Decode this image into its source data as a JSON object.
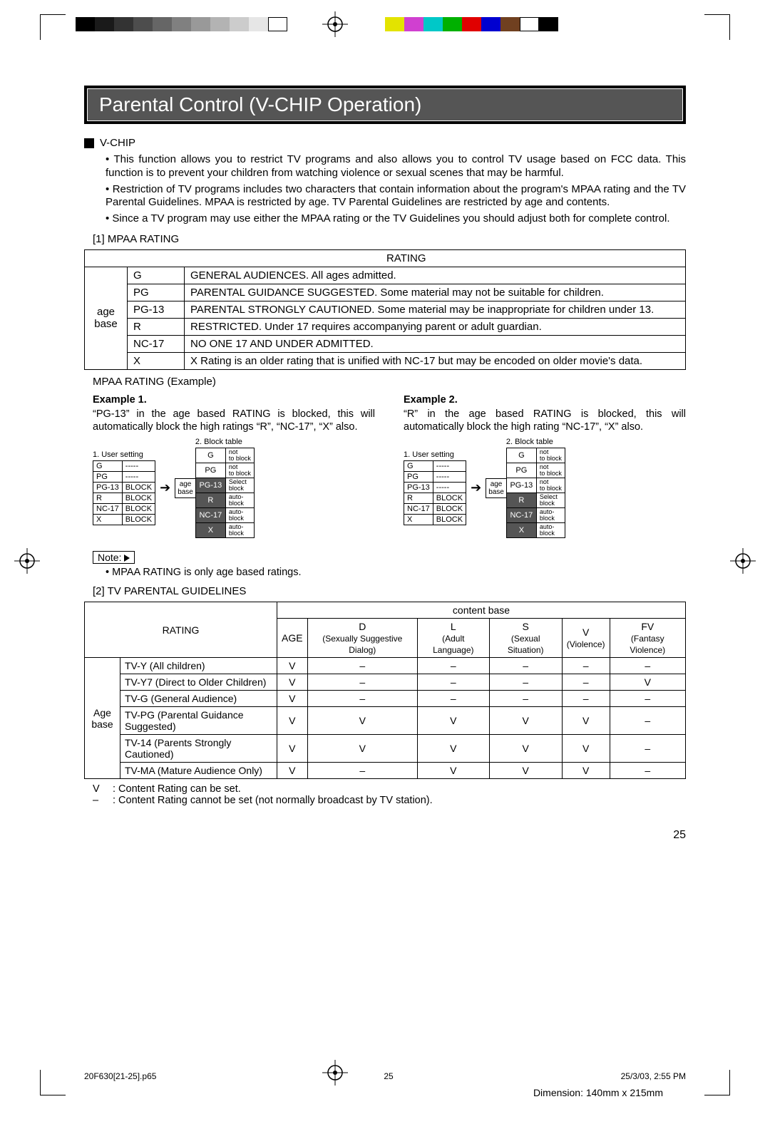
{
  "print_marks": {
    "gray_ramp": [
      "#000000",
      "#1a1a1a",
      "#333333",
      "#4d4d4d",
      "#666666",
      "#808080",
      "#999999",
      "#b3b3b3",
      "#cccccc",
      "#e6e6e6",
      "#ffffff"
    ],
    "color_bar": [
      "#e3e300",
      "#d040d0",
      "#00c8c8",
      "#00b000",
      "#e00000",
      "#0000d0",
      "#704020",
      "#ffffff",
      "#000000"
    ]
  },
  "title": "Parental Control (V-CHIP Operation)",
  "vchip_header": "V-CHIP",
  "vchip_bullets": [
    "This function allows you to restrict TV programs and also allows you to control TV usage based on FCC data. This function is to prevent your children from watching violence or sexual scenes that may be harmful.",
    "Restriction of TV programs includes two characters that contain information about the program's MPAA rating and the TV Parental Guidelines. MPAA is restricted by age. TV Parental Guidelines are restricted by age and contents.",
    "Since a TV program may use either the MPAA rating or the TV Guidelines you should adjust both for complete control."
  ],
  "mpaa_section_label": "[1] MPAA RATING",
  "mpaa_table": {
    "header": "RATING",
    "rowhead": "age base",
    "rows": [
      {
        "code": "G",
        "desc": "GENERAL AUDIENCES. All ages admitted."
      },
      {
        "code": "PG",
        "desc": "PARENTAL GUIDANCE SUGGESTED. Some material may not be suitable for children."
      },
      {
        "code": "PG-13",
        "desc": "PARENTAL STRONGLY CAUTIONED.  Some material may be inappropriate for children under 13."
      },
      {
        "code": "R",
        "desc": "RESTRICTED. Under 17 requires accompanying parent or adult guardian."
      },
      {
        "code": "NC-17",
        "desc": "NO ONE 17 AND UNDER ADMITTED."
      },
      {
        "code": "X",
        "desc": "X Rating is an older rating that is unified with NC-17 but may be encoded on older movie's data."
      }
    ]
  },
  "mpaa_example_label": "MPAA RATING (Example)",
  "examples": [
    {
      "title": "Example 1.",
      "text": "“PG-13” in the age based RATING is blocked, this will automatically block the high ratings “R”, “NC-17”, “X” also.",
      "user_header": "1. User setting",
      "block_header": "2. Block table",
      "user_rows": [
        [
          "G",
          "-----"
        ],
        [
          "PG",
          "-----"
        ],
        [
          "PG-13",
          "BLOCK"
        ],
        [
          "R",
          "BLOCK"
        ],
        [
          "NC-17",
          "BLOCK"
        ],
        [
          "X",
          "BLOCK"
        ]
      ],
      "age_label": "age base",
      "block_rows": [
        {
          "code": "G",
          "state": "not to block",
          "dark": false
        },
        {
          "code": "PG",
          "state": "not to block",
          "dark": false
        },
        {
          "code": "PG-13",
          "state": "Select block",
          "dark": true
        },
        {
          "code": "R",
          "state": "auto-block",
          "dark": true
        },
        {
          "code": "NC-17",
          "state": "auto-block",
          "dark": true
        },
        {
          "code": "X",
          "state": "auto-block",
          "dark": true
        }
      ]
    },
    {
      "title": "Example 2.",
      "text": "“R” in the age based RATING is blocked, this will automatically block the high rating “NC-17”, “X” also.",
      "user_header": "1. User setting",
      "block_header": "2. Block table",
      "user_rows": [
        [
          "G",
          "-----"
        ],
        [
          "PG",
          "-----"
        ],
        [
          "PG-13",
          "-----"
        ],
        [
          "R",
          "BLOCK"
        ],
        [
          "NC-17",
          "BLOCK"
        ],
        [
          "X",
          "BLOCK"
        ]
      ],
      "age_label": "age base",
      "block_rows": [
        {
          "code": "G",
          "state": "not to block",
          "dark": false
        },
        {
          "code": "PG",
          "state": "not to block",
          "dark": false
        },
        {
          "code": "PG-13",
          "state": "not to block",
          "dark": false
        },
        {
          "code": "R",
          "state": "Select block",
          "dark": true
        },
        {
          "code": "NC-17",
          "state": "auto-block",
          "dark": true
        },
        {
          "code": "X",
          "state": "auto-block",
          "dark": true
        }
      ]
    }
  ],
  "note_label": "Note:",
  "note_text": "MPAA RATING is only age based ratings.",
  "tvpg_section_label": "[2] TV PARENTAL GUIDELINES",
  "tvpg_table": {
    "rating_header": "RATING",
    "content_base": "content base",
    "cols": [
      {
        "h1": "AGE",
        "h2": ""
      },
      {
        "h1": "D",
        "h2": "(Sexually Suggestive Dialog)"
      },
      {
        "h1": "L",
        "h2": "(Adult Language)"
      },
      {
        "h1": "S",
        "h2": "(Sexual Situation)"
      },
      {
        "h1": "V",
        "h2": "(Violence)"
      },
      {
        "h1": "FV",
        "h2": "(Fantasy Violence)"
      }
    ],
    "rowhead": "Age base",
    "rows": [
      {
        "label": "TV-Y (All children)",
        "cells": [
          "V",
          "–",
          "–",
          "–",
          "–",
          "–"
        ]
      },
      {
        "label": "TV-Y7 (Direct to Older Children)",
        "cells": [
          "V",
          "–",
          "–",
          "–",
          "–",
          "V"
        ]
      },
      {
        "label": "TV-G (General Audience)",
        "cells": [
          "V",
          "–",
          "–",
          "–",
          "–",
          "–"
        ]
      },
      {
        "label": "TV-PG (Parental Guidance Suggested)",
        "cells": [
          "V",
          "V",
          "V",
          "V",
          "V",
          "–"
        ]
      },
      {
        "label": "TV-14 (Parents Strongly Cautioned)",
        "cells": [
          "V",
          "V",
          "V",
          "V",
          "V",
          "–"
        ]
      },
      {
        "label": "TV-MA (Mature Audience Only)",
        "cells": [
          "V",
          "–",
          "V",
          "V",
          "V",
          "–"
        ]
      }
    ]
  },
  "legend": [
    {
      "k": "V",
      "v": ": Content Rating can be set."
    },
    {
      "k": "–",
      "v": ": Content Rating cannot be set (not normally broadcast by TV station)."
    }
  ],
  "page_number": "25",
  "footer": {
    "file": "20F630[21-25].p65",
    "page": "25",
    "datetime": "25/3/03, 2:55 PM"
  },
  "dimension": "Dimension: 140mm x 215mm"
}
